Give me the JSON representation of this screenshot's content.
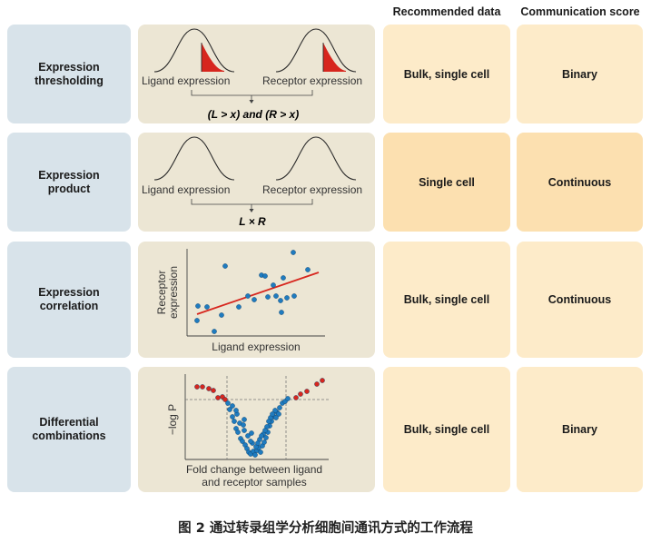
{
  "headers": {
    "recommended_data": "Recommended data",
    "communication_score": "Communication score"
  },
  "rows": [
    {
      "name_line1": "Expression",
      "name_line2": "thresholding",
      "left_label": "Ligand expression",
      "right_label": "Receptor expression",
      "formula": "(L > x) and (R > x)",
      "recommended_data": "Bulk, single cell",
      "communication_score": "Binary"
    },
    {
      "name_line1": "Expression",
      "name_line2": "product",
      "left_label": "Ligand expression",
      "right_label": "Receptor expression",
      "formula": "L × R",
      "recommended_data": "Single cell",
      "communication_score": "Continuous"
    },
    {
      "name_line1": "Expression",
      "name_line2": "correlation",
      "y_label_line1": "Receptor",
      "y_label_line2": "expression",
      "x_label": "Ligand expression",
      "recommended_data": "Bulk, single cell",
      "communication_score": "Continuous"
    },
    {
      "name_line1": "Differential",
      "name_line2": "combinations",
      "y_label": "−log P",
      "x_label_line1": "Fold change between ligand",
      "x_label_line2": "and receptor samples",
      "recommended_data": "Bulk, single cell",
      "communication_score": "Binary"
    }
  ],
  "caption": "图 2 通过转录组学分析细胞间通讯方式的工作流程",
  "colors": {
    "label_box": "#d8e3ea",
    "diagram_box": "#ece6d4",
    "data_box_light": "#fdebc9",
    "data_box_warm": "#fce0b0",
    "threshold_fill": "#d7261e",
    "trend_line": "#d7261e",
    "blue_point": "#1f7bbf",
    "red_point": "#d7261e"
  }
}
